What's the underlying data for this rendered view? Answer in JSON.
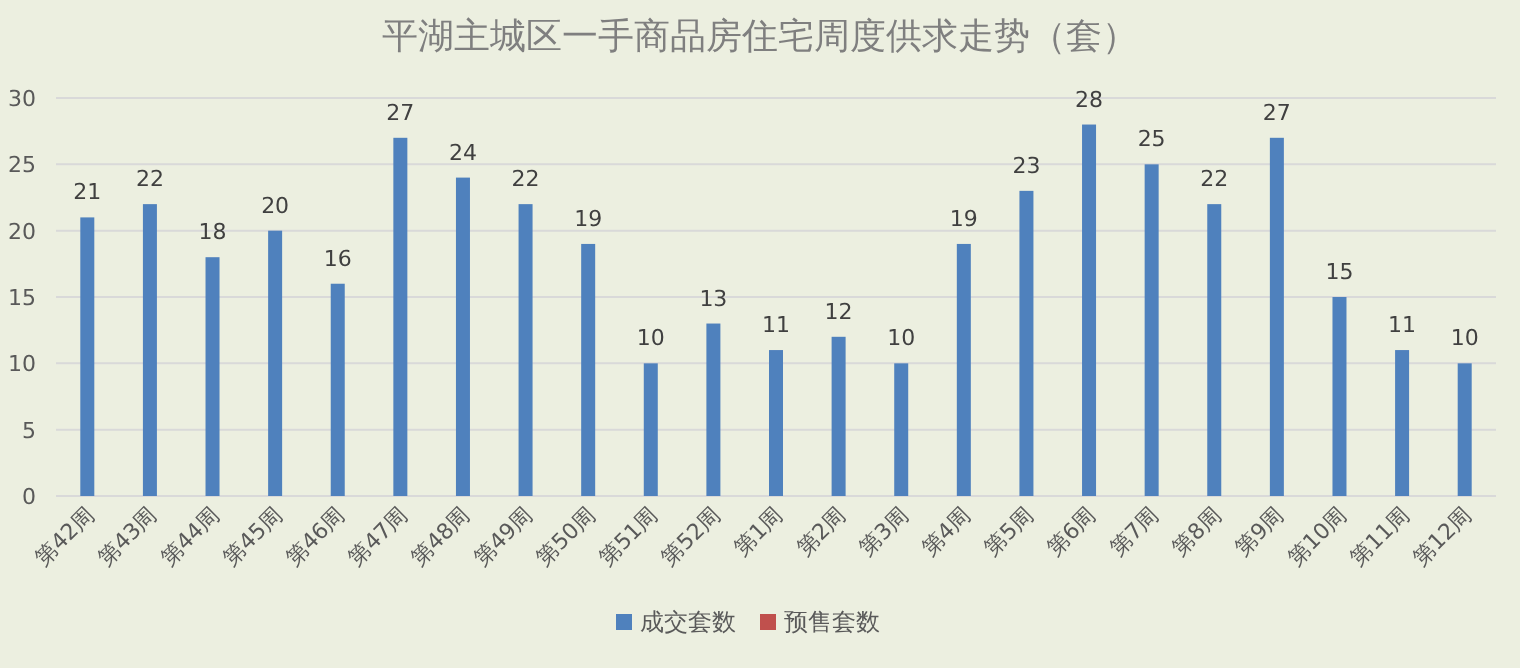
{
  "chart_data": {
    "type": "bar",
    "title": "平湖主城区一手商品房住宅周度供求走势（套）",
    "categories": [
      "第42周",
      "第43周",
      "第44周",
      "第45周",
      "第46周",
      "第47周",
      "第48周",
      "第49周",
      "第50周",
      "第51周",
      "第52周",
      "第1周",
      "第2周",
      "第3周",
      "第4周",
      "第5周",
      "第6周",
      "第7周",
      "第8周",
      "第9周",
      "第10周",
      "第11周",
      "第12周"
    ],
    "series": [
      {
        "name": "成交套数",
        "color": "#4f81bd",
        "values": [
          21,
          22,
          18,
          20,
          16,
          27,
          24,
          22,
          19,
          10,
          13,
          11,
          12,
          10,
          19,
          23,
          28,
          25,
          22,
          27,
          15,
          11,
          10
        ]
      },
      {
        "name": "预售套数",
        "color": "#c0504d",
        "values": [
          null,
          null,
          null,
          null,
          null,
          null,
          null,
          null,
          null,
          null,
          null,
          null,
          null,
          null,
          null,
          null,
          null,
          null,
          null,
          null,
          null,
          null,
          null
        ]
      }
    ],
    "ylim": [
      0,
      30
    ],
    "yticks": [
      0,
      5,
      10,
      15,
      20,
      25,
      30
    ],
    "grid": "y",
    "legend": "bottom",
    "data_labels": true
  }
}
